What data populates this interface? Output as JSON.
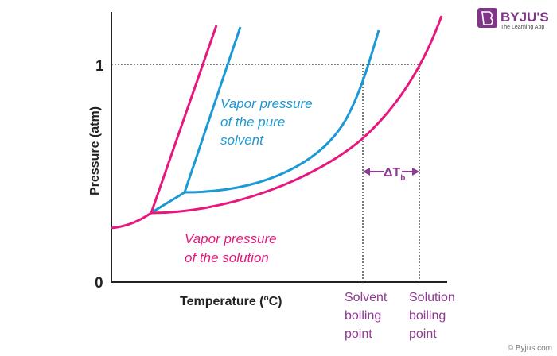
{
  "logo": {
    "brand": "BYJU'S",
    "tagline": "The Learning App"
  },
  "axes": {
    "ylabel": "Pressure (atm)",
    "xlabel_main": "Temperature (",
    "xlabel_sup": "o",
    "xlabel_end": "C)",
    "y_tick_top": "1",
    "y_tick_bottom": "0"
  },
  "labels": {
    "pure_solvent": [
      "Vapor pressure",
      "of the pure",
      "solvent"
    ],
    "solution": [
      "Vapor pressure",
      "of the solution"
    ],
    "delta_t": "ΔT",
    "delta_t_sub": "b",
    "solvent_bp": [
      "Solvent",
      "boiling",
      "point"
    ],
    "solution_bp": [
      "Solution",
      "boiling",
      "point"
    ]
  },
  "copyright": "© Byjus.com",
  "colors": {
    "solution": "#e8177d",
    "solvent": "#1b98d5",
    "annotation": "#8e3a93",
    "logo": "#813588"
  }
}
